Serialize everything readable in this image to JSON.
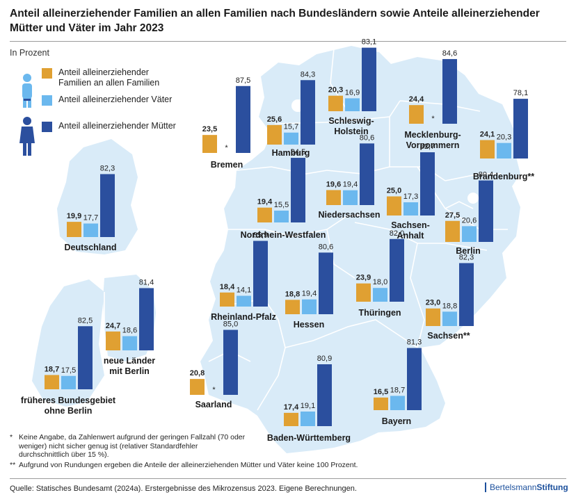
{
  "title": "Anteil alleinerziehender Familien an allen Familien nach Bundesländern sowie Anteile alleinerziehender Mütter und Väter im Jahr 2023",
  "subtitle": "In Prozent",
  "legend": [
    {
      "label": "Anteil alleinerziehender Familien an allen Familien",
      "color": "#E0A032"
    },
    {
      "label": "Anteil alleinerziehender Väter",
      "color": "#6BB8EE"
    },
    {
      "label": "Anteil alleinerziehender Mütter",
      "color": "#2B4F9E"
    }
  ],
  "colors": {
    "families": "#E0A032",
    "fathers": "#6BB8EE",
    "mothers": "#2B4F9E",
    "map": "#D9EBF8",
    "map_border": "#ffffff"
  },
  "icons": [
    "person-icon",
    "father-icon",
    "mother-icon"
  ],
  "chart_data": {
    "type": "bar",
    "unit": "In Prozent",
    "series_names": [
      "Anteil alleinerziehender Familien an allen Familien",
      "Anteil alleinerziehender Väter",
      "Anteil alleinerziehender Mütter"
    ],
    "groups": [
      {
        "name": "Bremen",
        "values": [
          23.5,
          null,
          87.5
        ]
      },
      {
        "name": "Hamburg",
        "values": [
          25.6,
          15.7,
          84.3
        ]
      },
      {
        "name": "Schleswig-Holstein",
        "values": [
          20.3,
          16.9,
          83.1
        ]
      },
      {
        "name": "Mecklenburg-Vorpommern",
        "values": [
          24.4,
          null,
          84.6
        ]
      },
      {
        "name": "Brandenburg**",
        "values": [
          24.1,
          20.3,
          78.1
        ]
      },
      {
        "name": "Deutschland",
        "values": [
          19.9,
          17.7,
          82.3
        ]
      },
      {
        "name": "Nordrhein-Westfalen",
        "values": [
          19.4,
          15.5,
          84.5
        ]
      },
      {
        "name": "Niedersachsen",
        "values": [
          19.6,
          19.4,
          80.6
        ]
      },
      {
        "name": "Sachsen-Anhalt",
        "values": [
          25.0,
          17.3,
          82.7
        ]
      },
      {
        "name": "Berlin",
        "values": [
          27.5,
          20.6,
          80.4
        ]
      },
      {
        "name": "Rheinland-Pfalz",
        "values": [
          18.4,
          14.1,
          85.9
        ]
      },
      {
        "name": "Hessen",
        "values": [
          18.8,
          19.4,
          80.6
        ]
      },
      {
        "name": "Thüringen",
        "values": [
          23.9,
          18.0,
          82.0
        ]
      },
      {
        "name": "Sachsen**",
        "values": [
          23.0,
          18.8,
          82.3
        ]
      },
      {
        "name": "früheres Bundesgebiet ohne Berlin",
        "values": [
          18.7,
          17.5,
          82.5
        ]
      },
      {
        "name": "neue Länder mit Berlin",
        "values": [
          24.7,
          18.6,
          81.4
        ]
      },
      {
        "name": "Saarland",
        "values": [
          20.8,
          null,
          85.0
        ]
      },
      {
        "name": "Baden-Württemberg",
        "values": [
          17.4,
          19.1,
          80.9
        ]
      },
      {
        "name": "Bayern",
        "values": [
          16.5,
          18.7,
          81.3
        ]
      }
    ],
    "missing_marker": "*"
  },
  "notes": [
    {
      "mark": "*",
      "text": "Keine Angabe, da Zahlenwert aufgrund der geringen Fallzahl (70 oder weniger) nicht sicher genug ist (relativer Standardfehler durchschnittlich über 15 %)."
    },
    {
      "mark": "**",
      "text": "Aufgrund von Rundungen ergeben die Anteile der alleinerziehenden Mütter und Väter keine 100 Prozent."
    }
  ],
  "source": "Quelle: Statisches Bundesamt (2024a). Erstergebnisse des Mikrozensus 2023. Eigene Berechnungen.",
  "brand": {
    "part1": "Bertelsmann",
    "part2": "Stiftung"
  }
}
